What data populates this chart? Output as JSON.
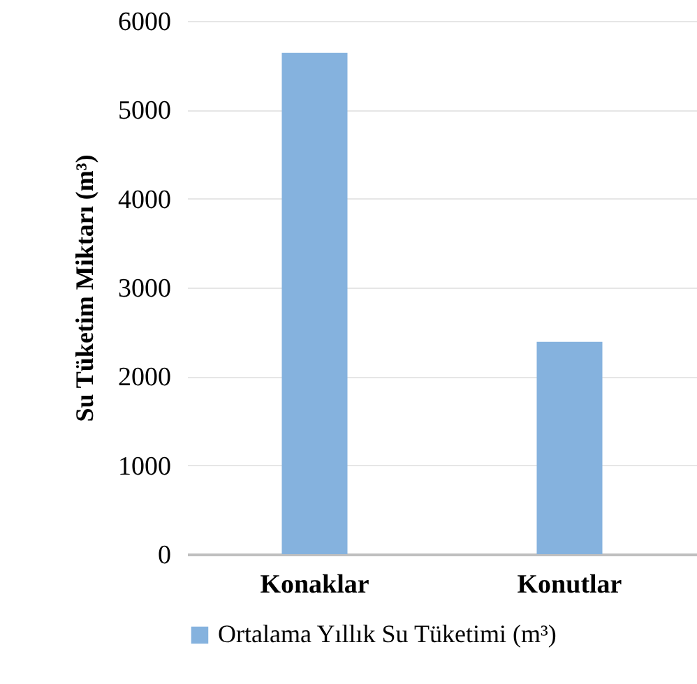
{
  "chart_data": {
    "type": "bar",
    "ylabel": "Su Tüketim Miktarı (m³)",
    "categories": [
      "Konaklar",
      "Konutlar"
    ],
    "series": [
      {
        "name": "Ortalama Yıllık Su Tüketimi (m³)",
        "color": "#85b2de",
        "values": [
          5640,
          2390
        ]
      }
    ],
    "ylim": [
      0,
      6000
    ],
    "yticks": [
      0,
      1000,
      2000,
      3000,
      4000,
      5000,
      6000
    ],
    "grid": "y",
    "legend": "bottom"
  }
}
